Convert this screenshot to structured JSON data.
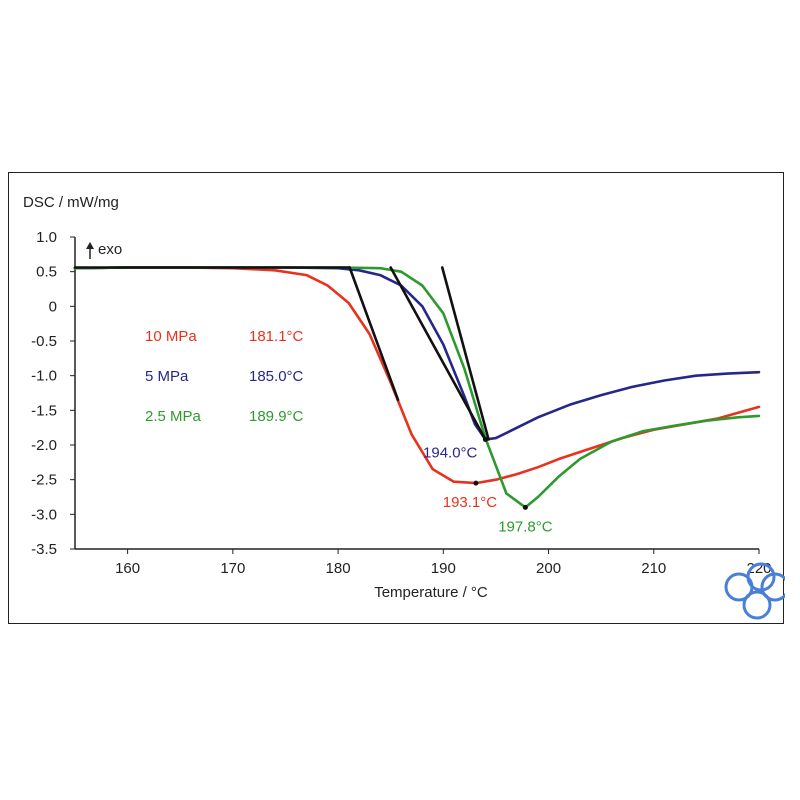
{
  "chart_data": {
    "type": "line",
    "ylabel": "DSC / mW/mg",
    "xlabel": "Temperature / °C",
    "exo_label": "exo",
    "xlim": [
      155,
      220
    ],
    "ylim": [
      -3.5,
      1.0
    ],
    "x_ticks": [
      160,
      170,
      180,
      190,
      200,
      210,
      220
    ],
    "x_tick_labels": [
      "160",
      "170",
      "180",
      "190",
      "200",
      "210",
      "220"
    ],
    "y_ticks": [
      1.0,
      0.5,
      0,
      -0.5,
      -1.0,
      -1.5,
      -2.0,
      -2.5,
      -3.0,
      -3.5
    ],
    "y_tick_labels": [
      "1.0",
      "0.5",
      "0",
      "-0.5",
      "-1.0",
      "-1.5",
      "-2.0",
      "-2.5",
      "-3.0",
      "-3.5"
    ],
    "legend": [
      {
        "pressure": "10 MPa",
        "onset": "181.1°C",
        "color": "#e8321e"
      },
      {
        "pressure": "5 MPa",
        "onset": "185.0°C",
        "color": "#27278a"
      },
      {
        "pressure": "2.5 MPa",
        "onset": "189.9°C",
        "color": "#2e9a2e"
      }
    ],
    "series": [
      {
        "color": "#e8321e",
        "x": [
          155,
          160,
          165,
          170,
          174,
          177,
          179,
          181,
          183,
          185,
          187,
          189,
          191,
          193.1,
          195,
          197,
          199,
          201,
          204,
          207,
          210,
          213,
          216,
          220
        ],
        "y": [
          0.55,
          0.56,
          0.56,
          0.55,
          0.52,
          0.45,
          0.3,
          0.05,
          -0.4,
          -1.1,
          -1.85,
          -2.35,
          -2.53,
          -2.55,
          -2.5,
          -2.42,
          -2.32,
          -2.2,
          -2.05,
          -1.9,
          -1.78,
          -1.7,
          -1.62,
          -1.45
        ]
      },
      {
        "color": "#27278a",
        "x": [
          155,
          160,
          165,
          170,
          175,
          180,
          182,
          184,
          186,
          188,
          190,
          192,
          193,
          194,
          195,
          197,
          199,
          202,
          205,
          208,
          211,
          214,
          217,
          220
        ],
        "y": [
          0.55,
          0.56,
          0.56,
          0.56,
          0.56,
          0.55,
          0.52,
          0.45,
          0.3,
          0.0,
          -0.55,
          -1.3,
          -1.7,
          -1.92,
          -1.9,
          -1.75,
          -1.6,
          -1.42,
          -1.28,
          -1.16,
          -1.07,
          -1.0,
          -0.97,
          -0.95
        ]
      },
      {
        "color": "#2e9a2e",
        "x": [
          155,
          160,
          165,
          170,
          175,
          180,
          184,
          186,
          188,
          190,
          192,
          194,
          196,
          197.8,
          199,
          201,
          203,
          206,
          209,
          212,
          215,
          218,
          220
        ],
        "y": [
          0.55,
          0.56,
          0.56,
          0.56,
          0.56,
          0.56,
          0.55,
          0.5,
          0.3,
          -0.1,
          -0.9,
          -1.9,
          -2.7,
          -2.9,
          -2.75,
          -2.45,
          -2.2,
          -1.95,
          -1.8,
          -1.72,
          -1.65,
          -1.6,
          -1.58
        ]
      }
    ],
    "tangent_lines": [
      {
        "x": [
          155,
          181.1
        ],
        "y": [
          0.56,
          0.56
        ]
      },
      {
        "x": [
          181.1,
          185.7
        ],
        "y": [
          0.56,
          -1.35
        ]
      },
      {
        "x": [
          185.0,
          194.0
        ],
        "y": [
          0.56,
          -1.92
        ]
      },
      {
        "x": [
          189.9,
          194.3
        ],
        "y": [
          0.56,
          -1.92
        ]
      }
    ],
    "peak_annotations": [
      {
        "text": "194.0°C",
        "x": 194.0,
        "y": -1.92,
        "color": "#27278a"
      },
      {
        "text": "193.1°C",
        "x": 193.1,
        "y": -2.55,
        "color": "#e8321e"
      },
      {
        "text": "197.8°C",
        "x": 197.8,
        "y": -2.9,
        "color": "#2e9a2e"
      }
    ],
    "grid": false,
    "legend_position": "left-center"
  }
}
